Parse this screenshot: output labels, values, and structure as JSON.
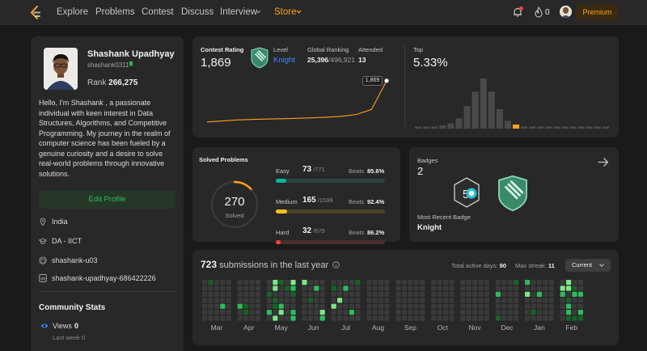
{
  "nav": {
    "items": [
      "Explore",
      "Problems",
      "Contest",
      "Discuss",
      "Interview",
      "Store"
    ],
    "streak_count": "0",
    "premium_label": "Premium"
  },
  "profile": {
    "name": "Shashank Upadhyay",
    "username": "shashank0311",
    "rank_label": "Rank",
    "rank_value": "266,275",
    "bio": "Hello, I'm Shashank , a passionate individual with keen interest in Data Structures, Algorithms, and Competitive Programming. My journey in the realm of computer science has been fueled by a genuine curiosity and a desire to solve real-world problems through innovative solutions.",
    "edit_label": "Edit Profile",
    "location": "India",
    "school": "DA - IICT",
    "github": "shashank-u03",
    "linkedin": "shashank-upadhyay-686422226"
  },
  "community": {
    "title": "Community Stats",
    "views_label": "Views",
    "views_value": "0",
    "last_week": "Last week 0"
  },
  "contest": {
    "rating_label": "Contest Rating",
    "rating": "1,869",
    "level_label": "Level",
    "level": "Knight",
    "global_label": "Global Ranking",
    "global_rank": "25,396",
    "global_total": "/496,921",
    "attended_label": "Attended",
    "attended": "13",
    "tooltip": "1,869",
    "top_label": "Top",
    "top_value": "5.33%",
    "rating_history": [
      1540,
      1548,
      1556,
      1560,
      1563,
      1566,
      1569,
      1573,
      1578,
      1585,
      1600,
      1640,
      1869
    ],
    "histogram": [
      3,
      3,
      4,
      6,
      10,
      20,
      44,
      72,
      98,
      72,
      38,
      15,
      8,
      4,
      3,
      2,
      1.5,
      1.5,
      1,
      1,
      1,
      1,
      1,
      1
    ],
    "histogram_highlight_index": 12
  },
  "solved": {
    "title": "Solved Problems",
    "total": "270",
    "total_label": "Solved",
    "beats_label": "Beats",
    "rows": [
      {
        "label": "Easy",
        "count": "73",
        "total": "/771",
        "beats": "85.6%",
        "fraction": 0.0947,
        "color": "#00b8a3",
        "track": "#2a4440"
      },
      {
        "label": "Medium",
        "count": "165",
        "total": "/1599",
        "beats": "92.4%",
        "fraction": 0.1032,
        "color": "#ffc01e",
        "track": "#4b4028"
      },
      {
        "label": "Hard",
        "count": "32",
        "total": "/675",
        "beats": "86.2%",
        "fraction": 0.0474,
        "color": "#ef4743",
        "track": "#4b2c2c"
      }
    ]
  },
  "badges": {
    "title": "Badges",
    "count": "2",
    "recent_label": "Most Recent Badge",
    "recent": "Knight"
  },
  "submissions": {
    "count": "723",
    "title": "submissions in the last year",
    "active_label": "Total active days:",
    "active_value": "90",
    "streak_label": "Max streak:",
    "streak_value": "11",
    "current_label": "Current",
    "months": [
      "Mar",
      "Apr",
      "May",
      "Jun",
      "Jul",
      "Aug",
      "Sep",
      "Oct",
      "Nov",
      "Dec",
      "Jan",
      "Feb"
    ]
  }
}
